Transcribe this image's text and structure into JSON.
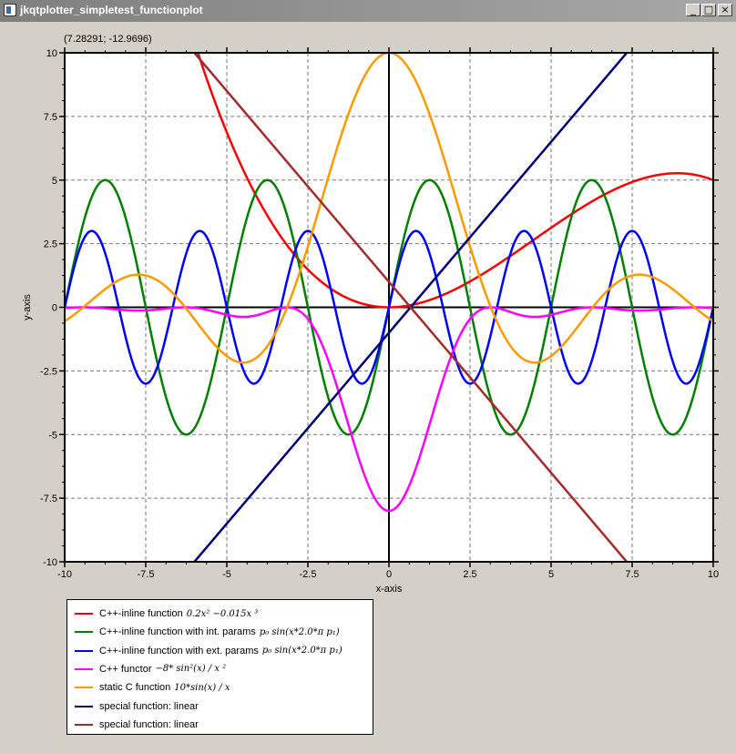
{
  "window": {
    "title": "jkqtplotter_simpletest_functionplot",
    "minimize_glyph": "_",
    "maximize_glyph": "□",
    "close_glyph": "×"
  },
  "coordinate_readout": "(7.28291; -12.9696)",
  "legend": {
    "items": [
      {
        "label": "C++-inline function",
        "formula": "0.2x² −0.015x ³",
        "color": "#ff0000"
      },
      {
        "label": "C++-inline function with int. params",
        "formula": "p₀ sin(x*2.0*π p₁)",
        "color": "#008000"
      },
      {
        "label": "C++-inline function with ext. params",
        "formula": "p₀ sin(x*2.0*π p₁)",
        "color": "#0000ff"
      },
      {
        "label": "C++ functor",
        "formula": "−8* sin²(x) / x ²",
        "color": "#ff00ff"
      },
      {
        "label": "static C function",
        "formula": "10*sin(x) / x",
        "color": "#ff9900"
      },
      {
        "label": "special function: linear",
        "formula": "",
        "color": "#00007f"
      },
      {
        "label": "special function: linear",
        "formula": "",
        "color": "#a52a2a"
      }
    ]
  },
  "chart_data": {
    "type": "line",
    "xlabel": "x-axis",
    "ylabel": "y-axis",
    "xlim": [
      -10,
      10
    ],
    "ylim": [
      -10,
      10
    ],
    "grid": true,
    "legend_placement": "below",
    "x_ticks": [
      "-10",
      "-7.5",
      "-5",
      "-2.5",
      "0",
      "2.5",
      "5",
      "7.5",
      "10"
    ],
    "y_ticks": [
      "10",
      "7.5",
      "5",
      "2.5",
      "0",
      "-2.5",
      "-5",
      "-7.5",
      "-10"
    ],
    "series": [
      {
        "name": "C++-inline function 0.2x² −0.015x³",
        "color": "#ff0000",
        "formula": "poly",
        "params": [
          0.2,
          -0.015
        ]
      },
      {
        "name": "C++-inline function with int. params",
        "color": "#008000",
        "formula": "sin",
        "params": [
          5,
          0.2
        ]
      },
      {
        "name": "C++-inline function with ext. params",
        "color": "#0000ff",
        "formula": "sin",
        "params": [
          3,
          0.3
        ]
      },
      {
        "name": "C++ functor −8*sin²(x)/x²",
        "color": "#ff00ff",
        "formula": "sinc2",
        "params": [
          -8
        ]
      },
      {
        "name": "static C function 10*sin(x)/x",
        "color": "#ff9900",
        "formula": "sinc",
        "params": [
          10
        ]
      },
      {
        "name": "special function: linear",
        "color": "#00007f",
        "formula": "linear",
        "params": [
          -1,
          1.5
        ]
      },
      {
        "name": "special function: linear",
        "color": "#a52a2a",
        "formula": "linear",
        "params": [
          1,
          -1.5
        ]
      }
    ]
  }
}
